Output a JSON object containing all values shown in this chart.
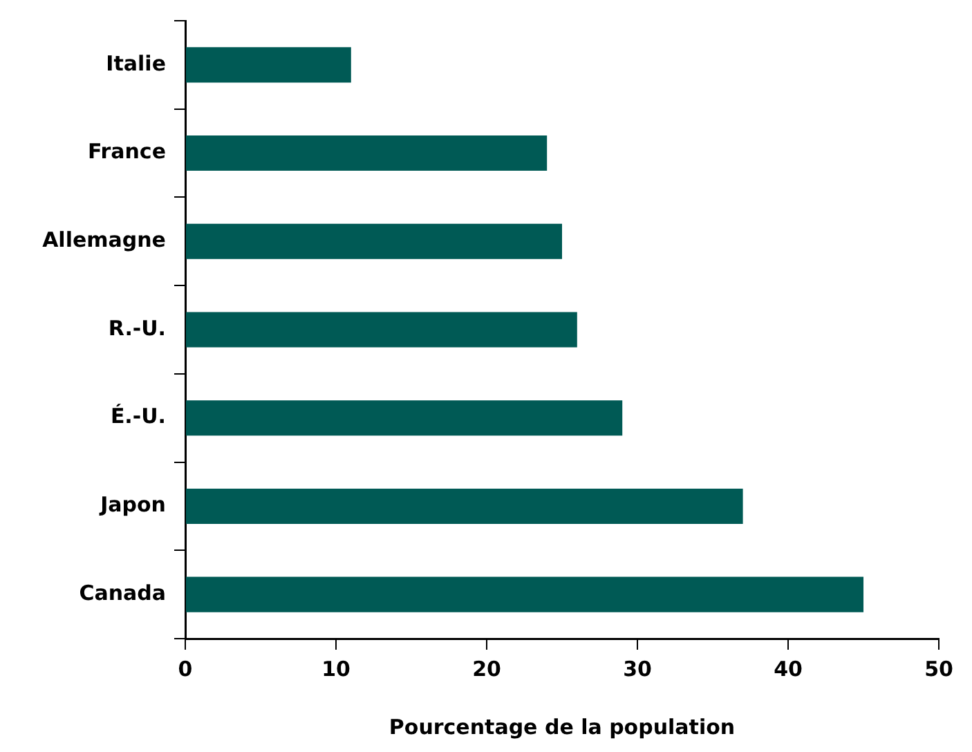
{
  "chart_data": {
    "type": "bar",
    "orientation": "horizontal",
    "xlabel": "Pourcentage de la population",
    "categories": [
      "Italie",
      "France",
      "Allemagne",
      "R.-U.",
      "É.-U.",
      "Japon",
      "Canada"
    ],
    "values": [
      11,
      24,
      25,
      26,
      29,
      37,
      45
    ],
    "color": "#005a55",
    "xlim": [
      0,
      50
    ],
    "xticks": [
      0,
      10,
      20,
      30,
      40,
      50
    ],
    "grid": false,
    "legend": false
  }
}
